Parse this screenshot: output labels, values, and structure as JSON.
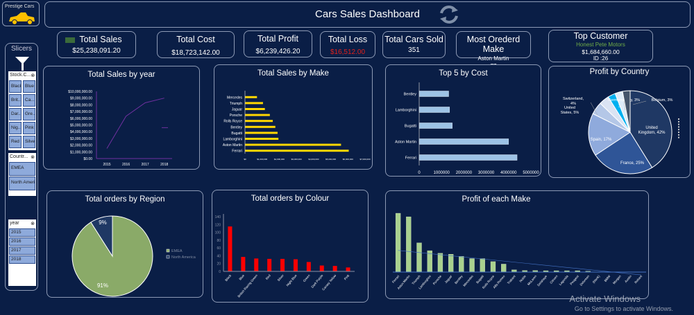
{
  "logo": {
    "text": "Prestige Cars",
    "icon": "car-icon"
  },
  "header": {
    "title": "Cars Sales Dashboard",
    "refresh_icon": "refresh-icon"
  },
  "kpis": {
    "total_sales": {
      "label": "Total Sales",
      "value": "$25,238,091.20"
    },
    "total_cost": {
      "label": "Total Cost",
      "value": "$18,723,142.00"
    },
    "total_profit": {
      "label": "Total Profit",
      "value": "$6,239,426.20"
    },
    "total_loss": {
      "label": "Total Loss",
      "value": "$16,512.00",
      "color": "#e0211c"
    },
    "cars_sold": {
      "label": "Total Cars Sold",
      "value": "351"
    },
    "most_ordered": {
      "label": "Most Orederd Make",
      "make": "Aston Martin",
      "count": "77"
    },
    "top_customer": {
      "label": "Top Customer",
      "name": "Honest Pete Motors",
      "value": "$1,684,660.00",
      "id": "ID :26",
      "name_color": "#70ad47"
    }
  },
  "slicers": {
    "title": "Slicers",
    "stock_colour": {
      "header": "Stock.C...",
      "items": [
        "Black",
        "Blue",
        "Brit...",
        "Ca...",
        "Dar...",
        "Gre...",
        "Nig...",
        "Pink",
        "Red",
        "Silver"
      ]
    },
    "country": {
      "header": "Countr...",
      "items": [
        "EMEA",
        "North America"
      ]
    },
    "year": {
      "header": "year",
      "items": [
        "2015",
        "2016",
        "2017",
        "2018"
      ]
    }
  },
  "chart_data": [
    {
      "id": "sales_year",
      "type": "line",
      "title": "Total  Sales by year",
      "categories": [
        "2015",
        "2016",
        "2017",
        "2018"
      ],
      "values": [
        1500000,
        6300000,
        8300000,
        9000000
      ],
      "ylim": [
        0,
        10000000
      ],
      "yticks": [
        "$0.00",
        "$1,000,000.00",
        "$2,000,000.00",
        "$3,000,000.00",
        "$4,000,000.00",
        "$5,000,000.00",
        "$6,000,000.00",
        "$7,000,000.00",
        "$8,000,000.00",
        "$9,000,000.00",
        "$10,000,000.00"
      ],
      "color": "#7030a0",
      "extra_point": {
        "x": "2018",
        "y": 4600000
      }
    },
    {
      "id": "sales_make",
      "type": "bar-horizontal",
      "title": "Total  Sales by Make",
      "categories": [
        "Mercedes",
        "Triumph",
        "Jaguar",
        "Porsche",
        "Rolls Royce",
        "Bentley",
        "Bugatti",
        "Lamborghini",
        "Aston Martin",
        "Ferrari"
      ],
      "values": [
        700000,
        1050000,
        1160000,
        1450000,
        1620000,
        1770000,
        1900000,
        1950000,
        5600000,
        6050000
      ],
      "xlim": [
        0,
        7000000
      ],
      "xticks": [
        "$0",
        "$1,000,000",
        "$2,000,000",
        "$3,000,000",
        "$4,000,000",
        "$5,000,000",
        "$6,000,000",
        "$7,000,000"
      ],
      "color": "#ffd700"
    },
    {
      "id": "top5_cost",
      "type": "bar-horizontal",
      "title": "Top 5 by Cost",
      "categories": [
        "Bentley",
        "Lamborghini",
        "Bugatti",
        "Aston Martin",
        "Ferrari"
      ],
      "values": [
        1320000,
        1360000,
        1480000,
        4000000,
        4380000
      ],
      "xlim": [
        0,
        5000000
      ],
      "xticks": [
        "0",
        "1000000",
        "2000000",
        "3000000",
        "4000000",
        "5000000"
      ],
      "color": "#9dc3e6"
    },
    {
      "id": "profit_country",
      "type": "pie",
      "title": "Profit by Country",
      "slices": [
        {
          "label": "United Kingdom, 42%",
          "value": 42,
          "color": "#1f3864"
        },
        {
          "label": "France, 25%",
          "value": 25,
          "color": "#2f5597"
        },
        {
          "label": "Spain, 17%",
          "value": 17,
          "color": "#8faadc"
        },
        {
          "label": "United States, 5%",
          "value": 5,
          "color": "#b4c7e7"
        },
        {
          "label": "Switzerland, 4%",
          "value": 4,
          "color": "#dae3f3"
        },
        {
          "label": "3%",
          "value": 3,
          "color": "#00b0f0"
        },
        {
          "label": "Germany, Italy, 3%",
          "value": 3,
          "color": "#deebf7"
        },
        {
          "label": "Belgium, 3%",
          "value": 3,
          "color": "#44546a"
        }
      ]
    },
    {
      "id": "orders_region",
      "type": "pie",
      "title": "Total orders by Region",
      "slices": [
        {
          "label": "91%",
          "name": "EMEA",
          "value": 91,
          "color": "#8aaa68"
        },
        {
          "label": "9%",
          "name": "North America",
          "value": 9,
          "color": "#1f3864"
        }
      ],
      "legend": [
        "EMEA",
        "North America"
      ]
    },
    {
      "id": "orders_colour",
      "type": "bar",
      "title": "Total orders by Colour",
      "categories": [
        "Black",
        "Blue",
        "British Racing Green",
        "Red",
        "Silver",
        "Night Blue",
        "Green",
        "Dark Purple",
        "Canary Yellow",
        "Pink"
      ],
      "values": [
        115,
        37,
        33,
        32,
        32,
        31,
        24,
        15,
        14,
        10
      ],
      "ylim": [
        0,
        140
      ],
      "yticks": [
        "0",
        "20",
        "40",
        "60",
        "80",
        "100",
        "120",
        "140"
      ],
      "color": "#ff0000"
    },
    {
      "id": "profit_make",
      "type": "bar",
      "title": "Profit of each Make",
      "categories": [
        "Ferrari",
        "Aston Martin",
        "Triumph",
        "Lamborghini",
        "Porsche",
        "Jaguar",
        "Bentley",
        "Mercedes",
        "Bugatti",
        "Rolls Royce",
        "Alfa Romeo",
        "Trabant",
        "Noble",
        "McLaren",
        "Delahaye",
        "Citroen",
        "Lagonda",
        "Peugeot",
        "Delorean",
        "(blank)",
        "BMW",
        "Morgan",
        "Austin",
        "Reliant"
      ],
      "values": [
        1250000,
        1175000,
        620000,
        455000,
        400000,
        380000,
        335000,
        287000,
        287000,
        223000,
        170000,
        48000,
        34000,
        34000,
        29000,
        29000,
        29000,
        29000,
        19000,
        5000,
        5000,
        5000,
        5000,
        -5000
      ],
      "color": "#a9d18e",
      "trendline": true
    }
  ],
  "watermark": {
    "title": "Activate Windows",
    "subtitle": "Go to Settings to activate Windows."
  }
}
